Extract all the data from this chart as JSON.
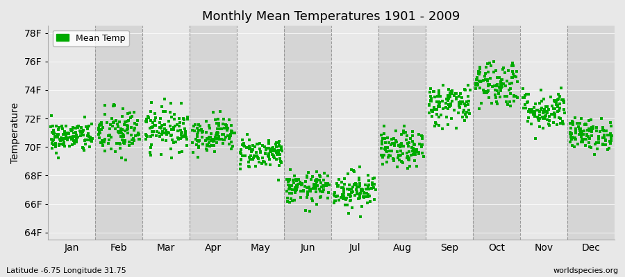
{
  "title": "Monthly Mean Temperatures 1901 - 2009",
  "ylabel": "Temperature",
  "months": [
    "Jan",
    "Feb",
    "Mar",
    "Apr",
    "May",
    "Jun",
    "Jul",
    "Aug",
    "Sep",
    "Oct",
    "Nov",
    "Dec"
  ],
  "monthly_means": [
    70.7,
    71.0,
    71.3,
    70.9,
    69.6,
    67.1,
    67.0,
    69.8,
    73.0,
    74.5,
    72.6,
    70.9
  ],
  "monthly_stds": [
    0.55,
    0.9,
    0.75,
    0.6,
    0.55,
    0.55,
    0.65,
    0.65,
    0.75,
    0.85,
    0.7,
    0.55
  ],
  "years": 109,
  "ylim": [
    63.5,
    78.5
  ],
  "yticks": [
    64,
    66,
    68,
    70,
    72,
    74,
    76,
    78
  ],
  "ytick_labels": [
    "64F",
    "66F",
    "68F",
    "70F",
    "72F",
    "74F",
    "76F",
    "78F"
  ],
  "dot_color": "#00aa00",
  "legend_label": "Mean Temp",
  "bottom_left": "Latitude -6.75 Longitude 31.75",
  "bottom_right": "worldspecies.org",
  "background_color": "#e8e8e8",
  "band_color_odd": "#e8e8e8",
  "band_color_even": "#d5d5d5",
  "seed": 42
}
